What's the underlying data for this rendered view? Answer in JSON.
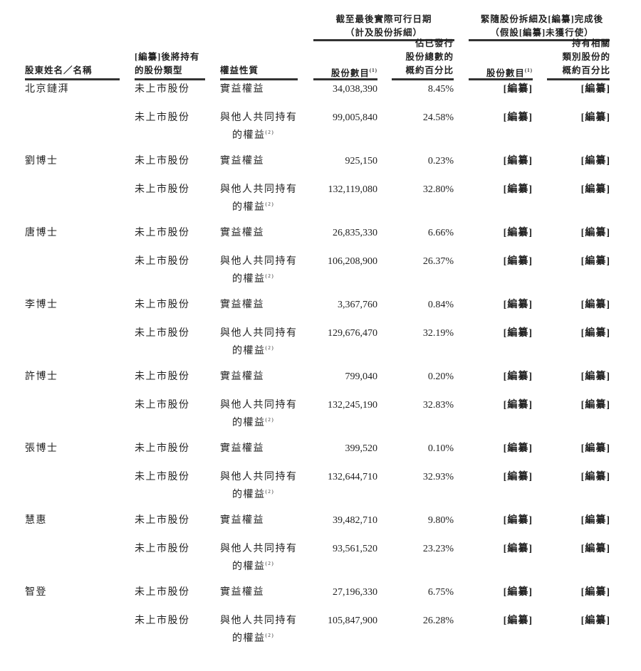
{
  "group_headers": {
    "as_of": [
      "截至最後實際可行日期",
      "（計及股份拆細）"
    ],
    "after": [
      "緊隨股份拆細及[編纂]完成後",
      "（假設[編纂]未獲行使）"
    ]
  },
  "columns": {
    "holder": "股東姓名／名稱",
    "share_type": [
      "[編纂]後將持有",
      "的股份類型"
    ],
    "interest": "權益性質",
    "shares_now": "股份數目",
    "shares_now_note": "(1)",
    "pct_now": [
      "佔已發行",
      "股份總數的",
      "概約百分比"
    ],
    "shares_after": "股份數目",
    "shares_after_note": "(1)",
    "pct_after": [
      "持有相關",
      "類別股份的",
      "概約百分比"
    ]
  },
  "rows": [
    {
      "holder": "北京鏈湃",
      "items": [
        {
          "type": "未上市股份",
          "interest": [
            "實益權益"
          ],
          "shares": "34,038,390",
          "pct": "8.45%",
          "shares_after": "[編纂]",
          "pct_after": "[編纂]"
        },
        {
          "type": "未上市股份",
          "interest": [
            "與他人共同持有",
            "的權益"
          ],
          "note": "(2)",
          "shares": "99,005,840",
          "pct": "24.58%",
          "shares_after": "[編纂]",
          "pct_after": "[編纂]"
        }
      ]
    },
    {
      "holder": "劉博士",
      "items": [
        {
          "type": "未上市股份",
          "interest": [
            "實益權益"
          ],
          "shares": "925,150",
          "pct": "0.23%",
          "shares_after": "[編纂]",
          "pct_after": "[編纂]"
        },
        {
          "type": "未上市股份",
          "interest": [
            "與他人共同持有",
            "的權益"
          ],
          "note": "(2)",
          "shares": "132,119,080",
          "pct": "32.80%",
          "shares_after": "[編纂]",
          "pct_after": "[編纂]"
        }
      ]
    },
    {
      "holder": "唐博士",
      "items": [
        {
          "type": "未上市股份",
          "interest": [
            "實益權益"
          ],
          "shares": "26,835,330",
          "pct": "6.66%",
          "shares_after": "[編纂]",
          "pct_after": "[編纂]"
        },
        {
          "type": "未上市股份",
          "interest": [
            "與他人共同持有",
            "的權益"
          ],
          "note": "(2)",
          "shares": "106,208,900",
          "pct": "26.37%",
          "shares_after": "[編纂]",
          "pct_after": "[編纂]"
        }
      ]
    },
    {
      "holder": "李博士",
      "items": [
        {
          "type": "未上市股份",
          "interest": [
            "實益權益"
          ],
          "shares": "3,367,760",
          "pct": "0.84%",
          "shares_after": "[編纂]",
          "pct_after": "[編纂]"
        },
        {
          "type": "未上市股份",
          "interest": [
            "與他人共同持有",
            "的權益"
          ],
          "note": "(2)",
          "shares": "129,676,470",
          "pct": "32.19%",
          "shares_after": "[編纂]",
          "pct_after": "[編纂]"
        }
      ]
    },
    {
      "holder": "許博士",
      "items": [
        {
          "type": "未上市股份",
          "interest": [
            "實益權益"
          ],
          "shares": "799,040",
          "pct": "0.20%",
          "shares_after": "[編纂]",
          "pct_after": "[編纂]"
        },
        {
          "type": "未上市股份",
          "interest": [
            "與他人共同持有",
            "的權益"
          ],
          "note": "(2)",
          "shares": "132,245,190",
          "pct": "32.83%",
          "shares_after": "[編纂]",
          "pct_after": "[編纂]"
        }
      ]
    },
    {
      "holder": "張博士",
      "items": [
        {
          "type": "未上市股份",
          "interest": [
            "實益權益"
          ],
          "shares": "399,520",
          "pct": "0.10%",
          "shares_after": "[編纂]",
          "pct_after": "[編纂]"
        },
        {
          "type": "未上市股份",
          "interest": [
            "與他人共同持有",
            "的權益"
          ],
          "note": "(2)",
          "shares": "132,644,710",
          "pct": "32.93%",
          "shares_after": "[編纂]",
          "pct_after": "[編纂]"
        }
      ]
    },
    {
      "holder": "慧惠",
      "items": [
        {
          "type": "未上市股份",
          "interest": [
            "實益權益"
          ],
          "shares": "39,482,710",
          "pct": "9.80%",
          "shares_after": "[編纂]",
          "pct_after": "[編纂]"
        },
        {
          "type": "未上市股份",
          "interest": [
            "與他人共同持有",
            "的權益"
          ],
          "note": "(2)",
          "shares": "93,561,520",
          "pct": "23.23%",
          "shares_after": "[編纂]",
          "pct_after": "[編纂]"
        }
      ]
    },
    {
      "holder": "智登",
      "items": [
        {
          "type": "未上市股份",
          "interest": [
            "實益權益"
          ],
          "shares": "27,196,330",
          "pct": "6.75%",
          "shares_after": "[編纂]",
          "pct_after": "[編纂]"
        },
        {
          "type": "未上市股份",
          "interest": [
            "與他人共同持有",
            "的權益"
          ],
          "note": "(2)",
          "shares": "105,847,900",
          "pct": "26.28%",
          "shares_after": "[編纂]",
          "pct_after": "[編纂]"
        }
      ]
    }
  ]
}
